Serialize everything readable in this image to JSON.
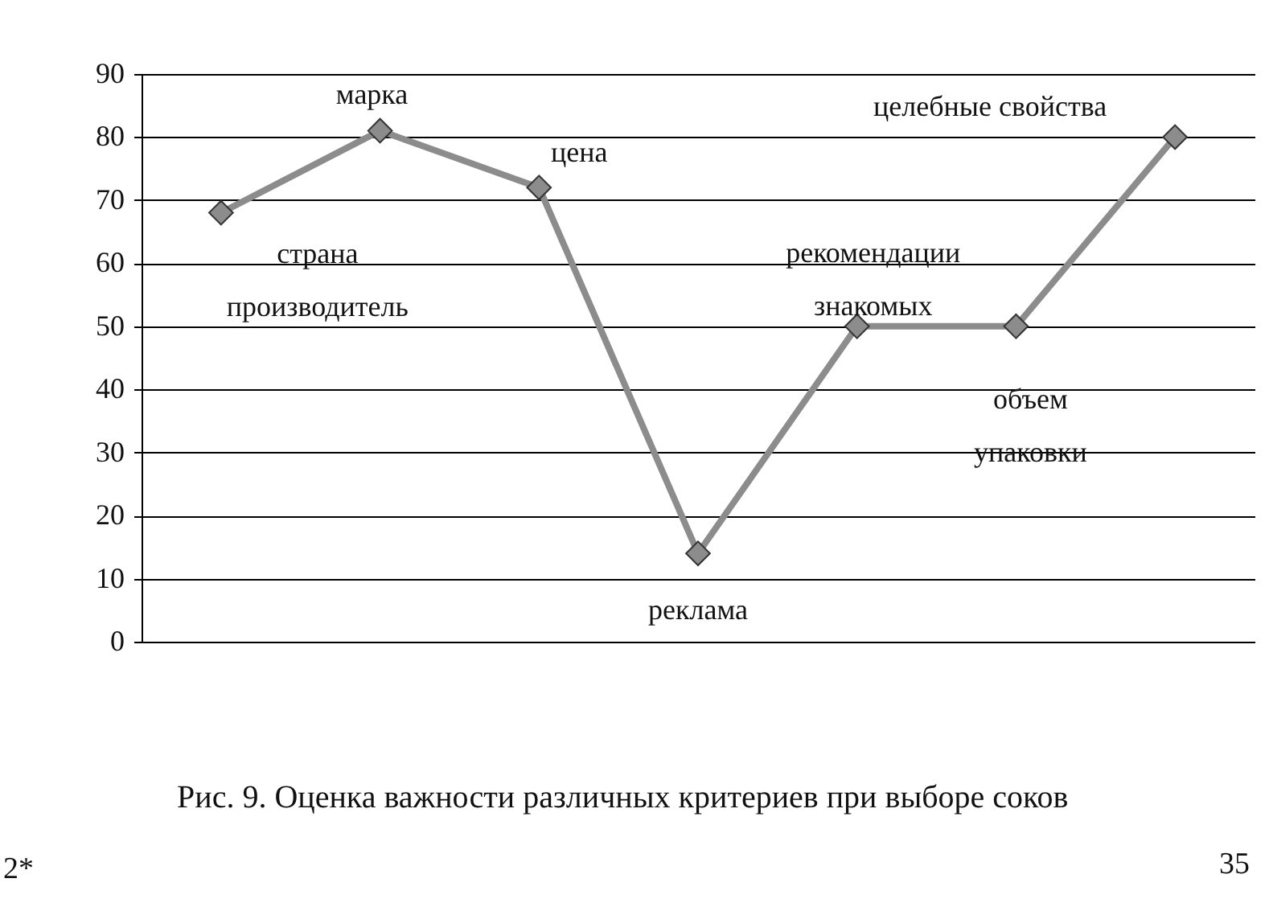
{
  "chart_data": {
    "type": "line",
    "categories": [
      null,
      null,
      null,
      null,
      null,
      null,
      null
    ],
    "series": [
      {
        "color": "#8c8c8c",
        "values": [
          68,
          81,
          72,
          14,
          50,
          50,
          80
        ]
      }
    ],
    "ylim": [
      0,
      90
    ],
    "yticks": [
      0,
      10,
      20,
      30,
      40,
      50,
      60,
      70,
      80,
      90
    ],
    "grid": "y",
    "marker": "diamond",
    "line_style": "solid",
    "tick_labels": "y",
    "annotations": [
      "страна производитель",
      "марка",
      "цена",
      "реклама",
      "рекомендации знакомых",
      "объем упаковки",
      "целебные свойства",
      "Рис. 9. Оценка важности различных критериев при выборе соков",
      "2*",
      "35"
    ]
  }
}
